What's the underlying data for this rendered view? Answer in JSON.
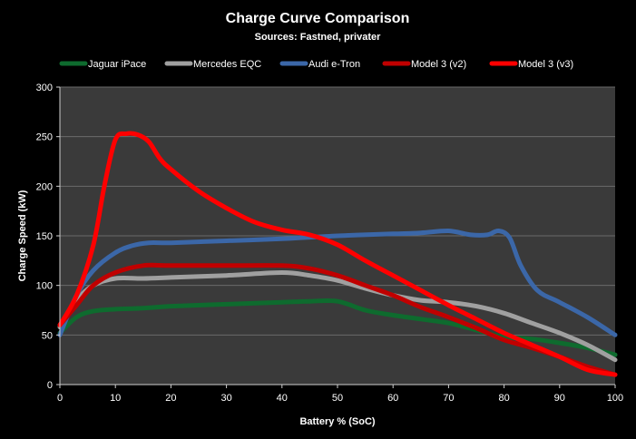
{
  "chart_data": {
    "type": "line",
    "title": "Charge Curve Comparison",
    "subtitle": "Sources: Fastned, privater",
    "xlabel": "Battery % (SoC)",
    "ylabel": "Charge Speed (kW)",
    "xlim": [
      0,
      100
    ],
    "ylim": [
      0,
      300
    ],
    "xticks": [
      0,
      10,
      20,
      30,
      40,
      50,
      60,
      70,
      80,
      90,
      100
    ],
    "yticks": [
      0,
      50,
      100,
      150,
      200,
      250,
      300
    ],
    "grid": true,
    "legend": "top",
    "plot_background": "#3a3a3a",
    "series": [
      {
        "name": "Jaguar iPace",
        "color": "#0e6b2e",
        "x": [
          0,
          3,
          6,
          10,
          15,
          20,
          30,
          40,
          45,
          50,
          55,
          60,
          65,
          70,
          75,
          80,
          85,
          90,
          95,
          100
        ],
        "y": [
          52,
          68,
          74,
          76,
          77,
          79,
          81,
          83,
          84,
          84,
          75,
          70,
          66,
          62,
          55,
          48,
          46,
          42,
          37,
          30
        ]
      },
      {
        "name": "Mercedes EQC",
        "color": "#a0a0a0",
        "x": [
          0,
          3,
          6,
          10,
          15,
          20,
          30,
          40,
          45,
          50,
          55,
          60,
          65,
          70,
          75,
          80,
          85,
          90,
          95,
          100
        ],
        "y": [
          58,
          85,
          100,
          107,
          107,
          108,
          110,
          113,
          110,
          105,
          97,
          90,
          85,
          83,
          79,
          72,
          62,
          52,
          40,
          25
        ]
      },
      {
        "name": "Audi e-Tron",
        "color": "#3b67a8",
        "x": [
          0,
          3,
          6,
          10,
          13,
          16,
          20,
          30,
          40,
          50,
          60,
          65,
          70,
          74,
          77,
          79,
          81,
          83,
          86,
          90,
          95,
          100
        ],
        "y": [
          50,
          90,
          115,
          133,
          140,
          143,
          143,
          145,
          147,
          150,
          152,
          153,
          155,
          151,
          151,
          155,
          148,
          120,
          95,
          83,
          68,
          50
        ]
      },
      {
        "name": "Model 3 (v2)",
        "color": "#c00000",
        "x": [
          0,
          3,
          6,
          10,
          15,
          20,
          30,
          40,
          45,
          50,
          55,
          60,
          65,
          70,
          75,
          80,
          85,
          90,
          95,
          100
        ],
        "y": [
          60,
          80,
          100,
          113,
          120,
          120,
          120,
          120,
          117,
          110,
          100,
          90,
          78,
          68,
          57,
          45,
          37,
          28,
          18,
          10
        ]
      },
      {
        "name": "Model 3 (v3)",
        "color": "#ff0000",
        "x": [
          0,
          3,
          6,
          8,
          10,
          12,
          14,
          16,
          18,
          20,
          25,
          30,
          35,
          40,
          45,
          50,
          55,
          60,
          65,
          70,
          75,
          80,
          85,
          90,
          95,
          100
        ],
        "y": [
          60,
          90,
          140,
          200,
          247,
          253,
          252,
          245,
          228,
          217,
          195,
          178,
          164,
          156,
          151,
          141,
          125,
          110,
          95,
          80,
          66,
          52,
          40,
          28,
          15,
          10
        ]
      }
    ]
  }
}
